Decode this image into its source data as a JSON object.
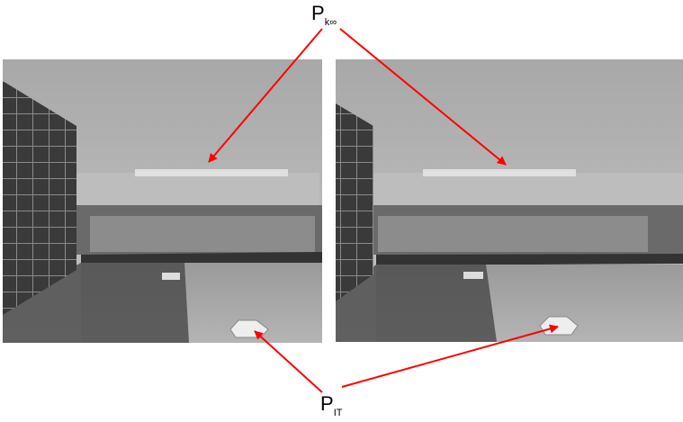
{
  "labels": {
    "top": {
      "main": "P",
      "sub": "k∞"
    },
    "bottom": {
      "main": "P",
      "sub": "IT"
    }
  }
}
